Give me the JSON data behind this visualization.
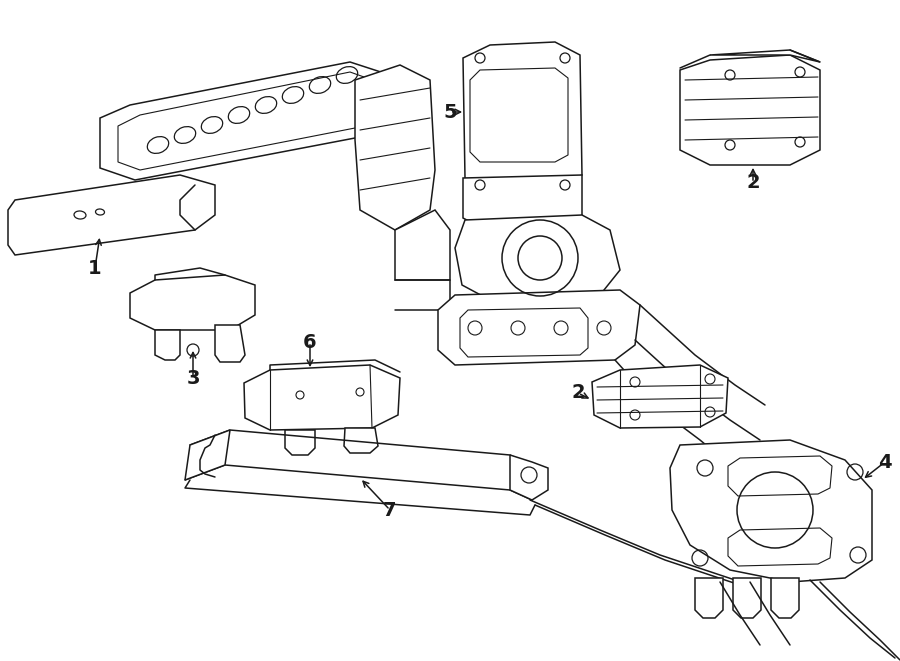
{
  "background_color": "#ffffff",
  "line_color": "#1a1a1a",
  "fig_width": 9.0,
  "fig_height": 6.61,
  "dpi": 100
}
